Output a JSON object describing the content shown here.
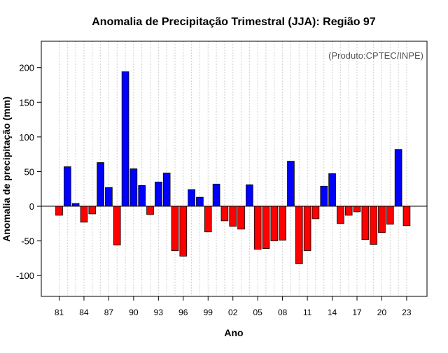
{
  "chart_data": {
    "type": "bar",
    "title": "Anomalia de Precipitação Trimestral (JJA): Região 97",
    "xlabel": "Ano",
    "ylabel": "Anomalia de precipitação (mm)",
    "credit": "(Produto:CPTEC/INPE)",
    "ylim": [
      -130,
      238
    ],
    "yticks": [
      -100,
      -50,
      0,
      50,
      100,
      150,
      200
    ],
    "ytick_labels": [
      "-100",
      "-50",
      "0",
      "50",
      "100",
      "150",
      "200"
    ],
    "xticks": [
      1981,
      1984,
      1987,
      1990,
      1993,
      1996,
      1999,
      2002,
      2005,
      2008,
      2011,
      2014,
      2017,
      2020,
      2023
    ],
    "xtick_labels": [
      "81",
      "84",
      "87",
      "90",
      "93",
      "96",
      "99",
      "02",
      "05",
      "08",
      "11",
      "14",
      "17",
      "20",
      "23"
    ],
    "positive_color": "#0000ff",
    "negative_color": "#ff0000",
    "years": [
      1981,
      1982,
      1983,
      1984,
      1985,
      1986,
      1987,
      1988,
      1989,
      1990,
      1991,
      1992,
      1993,
      1994,
      1995,
      1996,
      1997,
      1998,
      1999,
      2000,
      2001,
      2002,
      2003,
      2004,
      2005,
      2006,
      2007,
      2008,
      2009,
      2010,
      2011,
      2012,
      2013,
      2014,
      2015,
      2016,
      2017,
      2018,
      2019,
      2020,
      2021,
      2022,
      2023
    ],
    "values": [
      -13,
      57,
      4,
      -23,
      -11,
      63,
      27,
      -56,
      194,
      54,
      30,
      -12,
      35,
      48,
      -64,
      -72,
      24,
      13,
      -37,
      32,
      -21,
      -29,
      -33,
      31,
      -62,
      -61,
      -50,
      -49,
      65,
      -83,
      -64,
      -18,
      29,
      47,
      -25,
      -13,
      -8,
      -48,
      -55,
      -38,
      -26,
      82,
      -28
    ],
    "grid": true,
    "legend": "none"
  }
}
